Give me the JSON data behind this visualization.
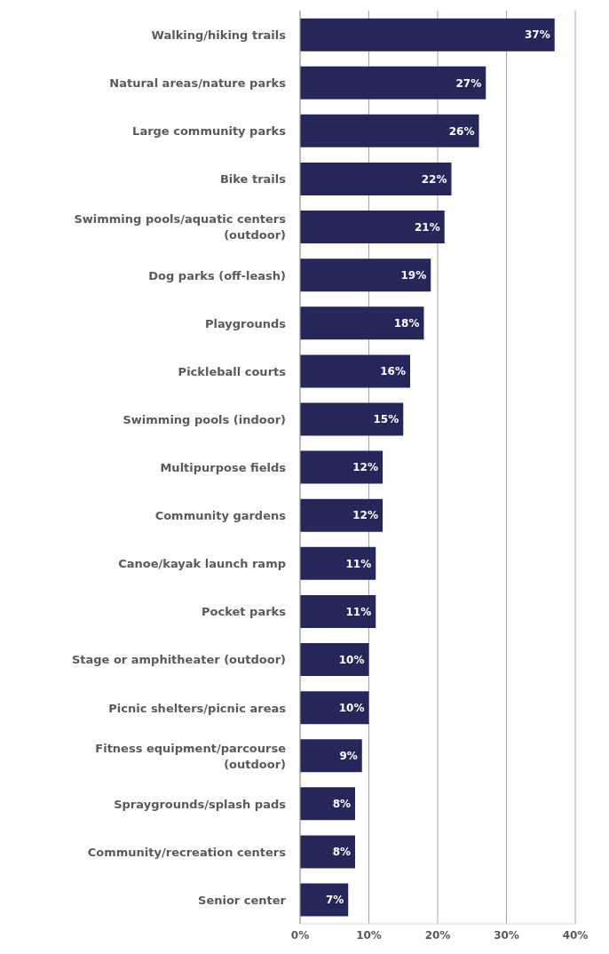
{
  "chart_data": {
    "type": "bar",
    "orientation": "horizontal",
    "categories": [
      "Walking/hiking trails",
      "Natural areas/nature parks",
      "Large community parks",
      "Bike trails",
      "Swimming pools/aquatic centers (outdoor)",
      "Dog parks (off-leash)",
      "Playgrounds",
      "Pickleball courts",
      "Swimming pools (indoor)",
      "Multipurpose fields",
      "Community gardens",
      "Canoe/kayak launch ramp",
      "Pocket parks",
      "Stage or amphitheater (outdoor)",
      "Picnic shelters/picnic areas",
      "Fitness equipment/parcourse (outdoor)",
      "Spraygrounds/splash pads",
      "Community/recreation centers",
      "Senior center"
    ],
    "values": [
      37,
      27,
      26,
      22,
      21,
      19,
      18,
      16,
      15,
      12,
      12,
      11,
      11,
      10,
      10,
      9,
      8,
      8,
      7
    ],
    "value_labels": [
      "37%",
      "27%",
      "26%",
      "22%",
      "21%",
      "19%",
      "18%",
      "16%",
      "15%",
      "12%",
      "12%",
      "11%",
      "11%",
      "10%",
      "10%",
      "9%",
      "8%",
      "8%",
      "7%"
    ],
    "color": "#25275b",
    "xlim": [
      0,
      40
    ],
    "xticks": [
      {
        "value": 0,
        "label": "0%"
      },
      {
        "value": 10,
        "label": "10%"
      },
      {
        "value": 20,
        "label": "20%"
      },
      {
        "value": 30,
        "label": "30%"
      },
      {
        "value": 40,
        "label": "40%"
      }
    ],
    "grid": "x",
    "legend": false
  }
}
